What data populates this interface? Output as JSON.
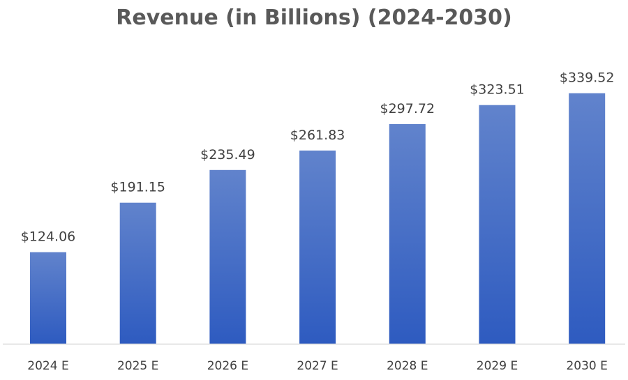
{
  "chart_data": {
    "type": "bar",
    "title": "Revenue (in Billions) (2024-2030)",
    "categories": [
      "2024 E",
      "2025 E",
      "2026 E",
      "2027 E",
      "2028 E",
      "2029 E",
      "2030 E"
    ],
    "values": [
      124.06,
      191.15,
      235.49,
      261.83,
      297.72,
      323.51,
      339.52
    ],
    "data_labels": [
      "$124.06",
      "$191.15",
      "$235.49",
      "$261.83",
      "$297.72",
      "$323.51",
      "$339.52"
    ],
    "xlabel": "",
    "ylabel": "",
    "ylim": [
      0,
      400
    ],
    "grid": false,
    "legend": "none",
    "colors": {
      "bar_top": "#6183CC",
      "bar_bottom": "#2E5BC0",
      "axis": "#D9D9D9",
      "title": "#595959",
      "text": "#404040"
    }
  }
}
